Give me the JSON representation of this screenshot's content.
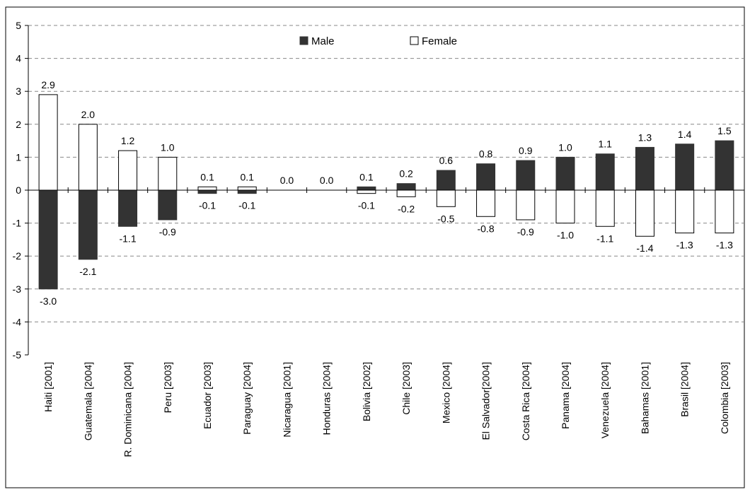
{
  "chart_data": {
    "type": "bar",
    "categories": [
      "Haiti [2001]",
      "Guatemala [2004]",
      "R. Dominicana [2004]",
      "Peru [2003]",
      "Ecuador [2003]",
      "Paraguay [2004]",
      "Nicaragua [2001]",
      "Honduras [2004]",
      "Bolivia [2002]",
      "Chile [2003]",
      "Mexico [2004]",
      "El Salvador[2004]",
      "Costa Rica [2004]",
      "Panama [2004]",
      "Venezuela [2004]",
      "Bahamas [2001]",
      "Brasil [2004]",
      "Colombia [2003]"
    ],
    "series": [
      {
        "name": "Male",
        "values": [
          -3.0,
          -2.1,
          -1.1,
          -0.9,
          -0.1,
          -0.1,
          0.0,
          0.0,
          0.1,
          0.2,
          0.6,
          0.8,
          0.9,
          1.0,
          1.1,
          1.3,
          1.4,
          1.5
        ],
        "color": "#333333"
      },
      {
        "name": "Female",
        "values": [
          2.9,
          2.0,
          1.2,
          1.0,
          0.1,
          0.1,
          0.0,
          0.0,
          -0.1,
          -0.2,
          -0.5,
          -0.8,
          -0.9,
          -1.0,
          -1.1,
          -1.4,
          -1.3,
          -1.3
        ],
        "color": "#ffffff"
      }
    ],
    "top_labels": [
      "2.9",
      "2.0",
      "1.2",
      "1.0",
      "0.1",
      "0.1",
      "0.0",
      "0.0",
      "0.1",
      "0.2",
      "0.6",
      "0.8",
      "0.9",
      "1.0",
      "1.1",
      "1.3",
      "1.4",
      "1.5"
    ],
    "bottom_labels": [
      "-3.0",
      "-2.1",
      "-1.1",
      "-0.9",
      "-0.1",
      "-0.1",
      "",
      "",
      "-0.1",
      "-0.2",
      "-0.5",
      "-0.8",
      "-0.9",
      "-1.0",
      "-1.1",
      "-1.4",
      "-1.3",
      "-1.3"
    ],
    "yticks": [
      "5",
      "4",
      "3",
      "2",
      "1",
      "0",
      "-1",
      "-2",
      "-3",
      "-4",
      "-5"
    ],
    "ylim": [
      -5,
      5
    ],
    "title": "",
    "xlabel": "",
    "ylabel": "",
    "grid": true,
    "legend_position": "top-center",
    "legend": {
      "male": "Male",
      "female": "Female"
    }
  }
}
